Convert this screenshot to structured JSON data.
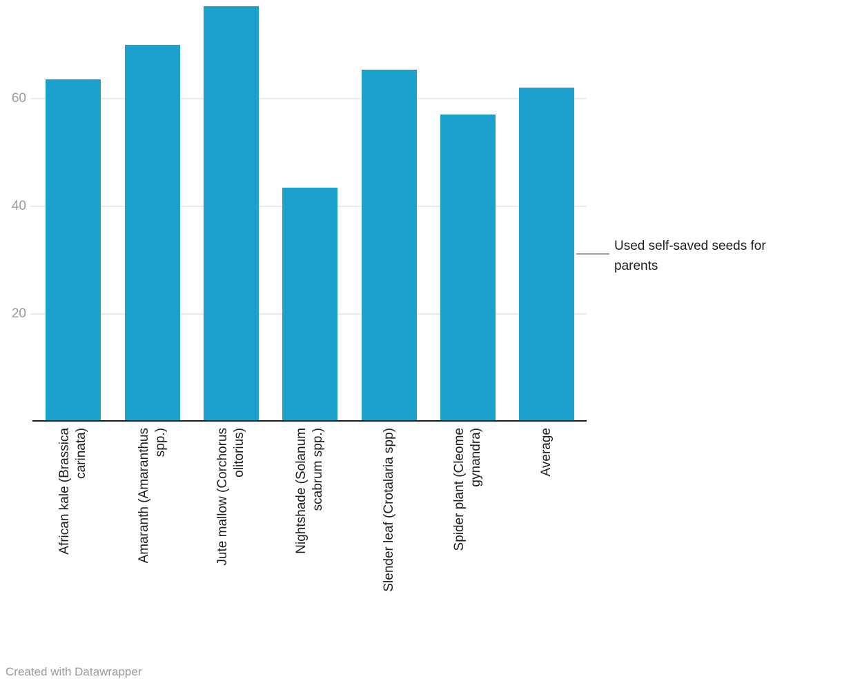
{
  "chart_data": {
    "type": "bar",
    "title": "",
    "xlabel": "",
    "ylabel": "",
    "categories": [
      "African kale (Brassica carinata)",
      "Amaranth (Amaranthus spp.)",
      "Jute mallow (Corchorus olitorius)",
      "Nightshade (Solanum scabrum spp.)",
      "Slender leaf (Crotalaria spp)",
      "Spider plant (Cleome gynandra)",
      "Average"
    ],
    "category_label_lines": [
      [
        "African kale (Brassica",
        "carinata)"
      ],
      [
        "Amaranth (Amaranthus",
        "spp.)"
      ],
      [
        "Jute mallow (Corchorus",
        "olitorius)"
      ],
      [
        "Nightshade (Solanum",
        "scabrum spp.)"
      ],
      [
        "Slender leaf (Crotalaria spp)"
      ],
      [
        "Spider plant (Cleome",
        "gynandra)"
      ],
      [
        "Average"
      ]
    ],
    "series": [
      {
        "name": "Used self-saved seeds for parents",
        "values": [
          63.6,
          70.0,
          77.2,
          43.5,
          65.4,
          57.0,
          62.1
        ]
      }
    ],
    "yticks": [
      20,
      40,
      60
    ],
    "ylim": [
      0,
      78.3
    ],
    "grid": true,
    "legend_position": "right-annotation-on-last-bar"
  },
  "legend": {
    "label": "Used self-saved seeds for\nparents"
  },
  "footer": {
    "text": "Created with Datawrapper"
  },
  "colors": {
    "bar": "#1ca0ce",
    "grid": "#e9e9e9",
    "axis": "#1a1a1a",
    "tick_label": "#9b9b9b",
    "category_label": "#1d1d1d",
    "legend_text": "#1d1d1d",
    "legend_line": "#a0a0a0",
    "footer": "#9b9b9b",
    "background": "#ffffff"
  }
}
